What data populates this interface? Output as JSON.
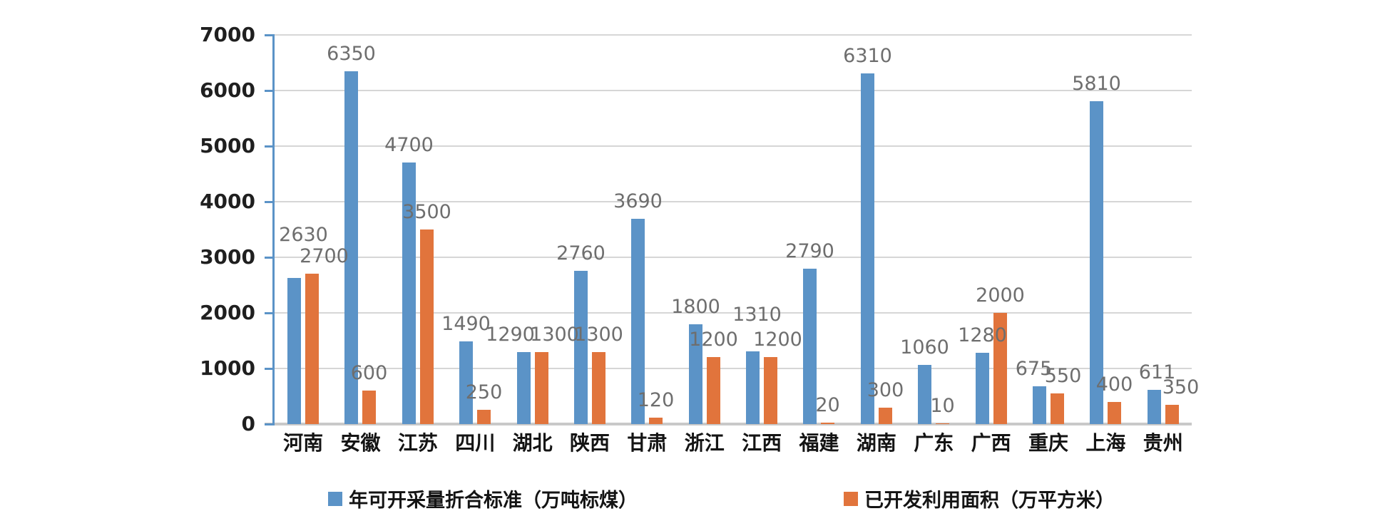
{
  "chart_data": {
    "type": "bar",
    "title": "",
    "categories": [
      "河南",
      "安徽",
      "江苏",
      "四川",
      "湖北",
      "陕西",
      "甘肃",
      "浙江",
      "江西",
      "福建",
      "湖南",
      "广东",
      "广西",
      "重庆",
      "上海",
      "贵州"
    ],
    "series": [
      {
        "name": "年可开采量折合标准（万吨标煤）",
        "color": "#5b93c7",
        "values": [
          2630,
          6350,
          4700,
          1490,
          1290,
          2760,
          3690,
          1800,
          1310,
          2790,
          6310,
          1060,
          1280,
          675,
          5810,
          611
        ]
      },
      {
        "name": "已开发利用面积（万平方米）",
        "color": "#e1743c",
        "values": [
          2700,
          600,
          3500,
          250,
          1300,
          1300,
          120,
          1200,
          1200,
          20,
          300,
          10,
          2000,
          550,
          400,
          350
        ]
      }
    ],
    "xlabel": "",
    "ylabel": "",
    "ylim": [
      0,
      7000
    ],
    "yticks": [
      0,
      1000,
      2000,
      3000,
      4000,
      5000,
      6000,
      7000
    ],
    "grid": true,
    "data_labels": true,
    "legend_position": "bottom"
  },
  "colors": {
    "background": "#ffffff",
    "gridline": "#d6d6d6",
    "baseline": "#c9c9c9",
    "axis_line": "#5b93c7",
    "axis_text": "#1f1f1f",
    "data_label_text": "#6e6e6e"
  }
}
